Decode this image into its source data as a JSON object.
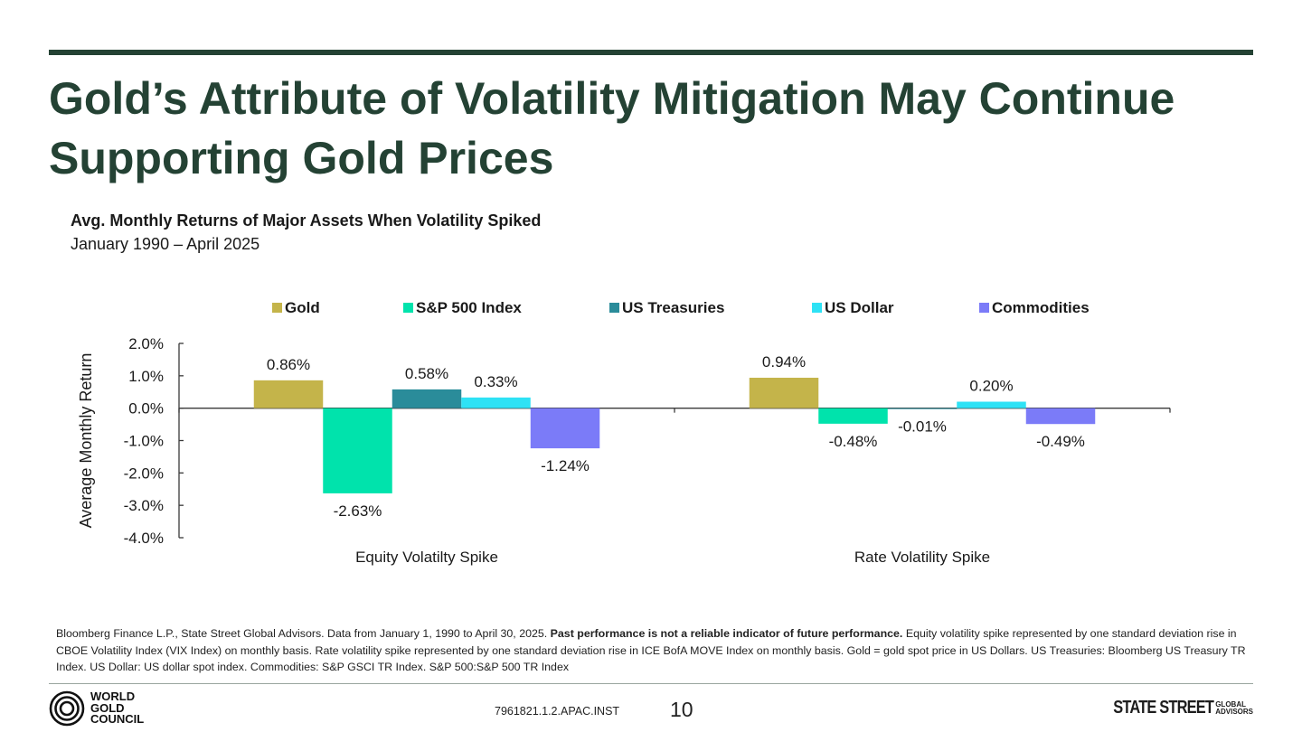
{
  "slide": {
    "title": "Gold’s Attribute of Volatility Mitigation May Continue Supporting Gold Prices",
    "source_pre": "Bloomberg Finance L.P., State Street Global Advisors. Data from January 1, 1990 to April 30, 2025. ",
    "source_bold": "Past performance is not a reliable indicator of future performance.",
    "source_post": " Equity volatility spike represented by one standard deviation rise in CBOE Volatility Index (VIX Index) on monthly basis. Rate volatility spike represented by one standard deviation rise in ICE BofA MOVE Index on monthly basis. Gold = gold spot price in US Dollars. US Treasuries: Bloomberg US Treasury TR Index. US Dollar: US dollar spot index. Commodities: S&P GSCI TR Index.  S&P 500:S&P 500 TR Index",
    "doc_code": "7961821.1.2.APAC.INST",
    "page_number": "10",
    "logo_wgc": [
      "WORLD",
      "GOLD",
      "COUNCIL"
    ],
    "logo_ss_main": "STATE STREET",
    "logo_ss_side": [
      "GLOBAL",
      "ADVISORS"
    ]
  },
  "chart_data": {
    "type": "bar",
    "title": "Avg. Monthly Returns of Major Assets When Volatility Spiked",
    "subtitle": "January 1990 – April 2025",
    "ylabel": "Average Monthly Return",
    "xlabel": "",
    "ylim": [
      -4.0,
      2.0
    ],
    "yticks": [
      2.0,
      1.0,
      0.0,
      -1.0,
      -2.0,
      -3.0,
      -4.0
    ],
    "ytick_format": "percent_1dp",
    "legend_position": "top",
    "grid": false,
    "categories": [
      "Equity Volatilty Spike",
      "Rate Volatility Spike"
    ],
    "series": [
      {
        "name": "Gold",
        "color": "#c4b44a",
        "values": [
          0.86,
          0.94
        ],
        "labels": [
          "0.86%",
          "0.94%"
        ]
      },
      {
        "name": "S&P 500 Index",
        "color": "#00e3ac",
        "values": [
          -2.63,
          -0.48
        ],
        "labels": [
          "-2.63%",
          "-0.48%"
        ]
      },
      {
        "name": "US Treasuries",
        "color": "#2a8c9a",
        "values": [
          0.58,
          -0.01
        ],
        "labels": [
          "0.58%",
          "-0.01%"
        ]
      },
      {
        "name": "US Dollar",
        "color": "#2ee2f5",
        "values": [
          0.33,
          0.2
        ],
        "labels": [
          "0.33%",
          "0.20%"
        ]
      },
      {
        "name": "Commodities",
        "color": "#7b7bf8",
        "values": [
          -1.24,
          -0.49
        ],
        "labels": [
          "-1.24%",
          "-0.49%"
        ]
      }
    ]
  }
}
